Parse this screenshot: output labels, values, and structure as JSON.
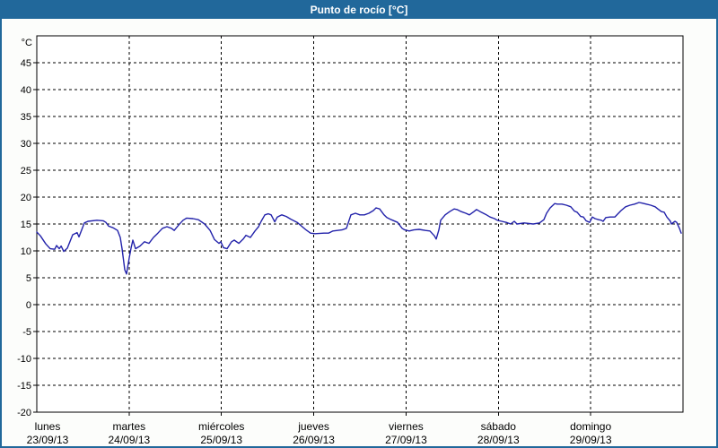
{
  "window": {
    "title": "Punto de rocío [°C]"
  },
  "colors": {
    "frame_blue": "#21689B",
    "title_text": "#FFFFFF",
    "window_bg": "#FCFDFB",
    "plot_bg": "#FFFFFF",
    "grid_black": "#000000",
    "series_blue": "#2222AA",
    "label_black": "#000000"
  },
  "axes": {
    "y": {
      "unit": "°C",
      "tick_values": [
        45,
        40,
        35,
        30,
        25,
        20,
        15,
        10,
        5,
        0,
        -5,
        -10,
        -15,
        -20
      ],
      "tick_labels": [
        "45",
        "40",
        "35",
        "30",
        "25",
        "20",
        "15",
        "10",
        "5",
        "0",
        "-5",
        "-10",
        "-15",
        "-20"
      ]
    },
    "x": {
      "days": [
        {
          "name": "lunes",
          "date": "23/09/13"
        },
        {
          "name": "martes",
          "date": "24/09/13"
        },
        {
          "name": "miércoles",
          "date": "25/09/13"
        },
        {
          "name": "jueves",
          "date": "26/09/13"
        },
        {
          "name": "viernes",
          "date": "27/09/13"
        },
        {
          "name": "sábado",
          "date": "28/09/13"
        },
        {
          "name": "domingo",
          "date": "29/09/13"
        }
      ]
    }
  },
  "chart_data": {
    "type": "line",
    "title": "Punto de rocío [°C]",
    "ylabel": "°C",
    "ylim": [
      -20,
      50
    ],
    "y_tick_step": 5,
    "grid": "dashed",
    "legend": "none",
    "x_axis_note": "x is time in days from lunes 23/09/13 00:00 to domingo 29/09/13 24:00 (0..7)",
    "x_days_total": 7,
    "series": [
      {
        "name": "Punto de rocío",
        "color": "#2222AA",
        "points": [
          [
            0.0,
            13.5
          ],
          [
            0.039,
            12.8
          ],
          [
            0.097,
            11.3
          ],
          [
            0.146,
            10.4
          ],
          [
            0.194,
            10.3
          ],
          [
            0.214,
            11.0
          ],
          [
            0.243,
            10.4
          ],
          [
            0.263,
            10.9
          ],
          [
            0.292,
            9.9
          ],
          [
            0.331,
            10.5
          ],
          [
            0.389,
            13.0
          ],
          [
            0.437,
            13.4
          ],
          [
            0.457,
            12.6
          ],
          [
            0.515,
            15.2
          ],
          [
            0.554,
            15.5
          ],
          [
            0.651,
            15.7
          ],
          [
            0.719,
            15.6
          ],
          [
            0.749,
            15.3
          ],
          [
            0.778,
            14.6
          ],
          [
            0.826,
            14.3
          ],
          [
            0.875,
            13.8
          ],
          [
            0.904,
            12.5
          ],
          [
            0.924,
            10.4
          ],
          [
            0.953,
            6.5
          ],
          [
            0.972,
            5.7
          ],
          [
            1.001,
            8.7
          ],
          [
            1.021,
            10.5
          ],
          [
            1.04,
            12.0
          ],
          [
            1.069,
            10.4
          ],
          [
            1.118,
            10.9
          ],
          [
            1.167,
            11.7
          ],
          [
            1.215,
            11.4
          ],
          [
            1.264,
            12.5
          ],
          [
            1.312,
            13.3
          ],
          [
            1.361,
            14.2
          ],
          [
            1.41,
            14.5
          ],
          [
            1.458,
            14.2
          ],
          [
            1.488,
            13.8
          ],
          [
            1.536,
            14.8
          ],
          [
            1.585,
            15.7
          ],
          [
            1.624,
            16.1
          ],
          [
            1.692,
            16.0
          ],
          [
            1.75,
            15.8
          ],
          [
            1.818,
            15.0
          ],
          [
            1.877,
            13.8
          ],
          [
            1.925,
            12.1
          ],
          [
            1.974,
            11.4
          ],
          [
            1.993,
            11.7
          ],
          [
            2.022,
            10.6
          ],
          [
            2.061,
            10.4
          ],
          [
            2.11,
            11.7
          ],
          [
            2.139,
            12.0
          ],
          [
            2.188,
            11.4
          ],
          [
            2.236,
            12.2
          ],
          [
            2.265,
            12.9
          ],
          [
            2.314,
            12.5
          ],
          [
            2.363,
            13.7
          ],
          [
            2.402,
            14.5
          ],
          [
            2.431,
            15.5
          ],
          [
            2.47,
            16.7
          ],
          [
            2.508,
            16.9
          ],
          [
            2.538,
            16.7
          ],
          [
            2.577,
            15.4
          ],
          [
            2.606,
            16.3
          ],
          [
            2.654,
            16.7
          ],
          [
            2.703,
            16.4
          ],
          [
            2.751,
            15.9
          ],
          [
            2.82,
            15.3
          ],
          [
            2.868,
            14.6
          ],
          [
            2.917,
            13.9
          ],
          [
            2.965,
            13.3
          ],
          [
            3.014,
            13.2
          ],
          [
            3.111,
            13.3
          ],
          [
            3.16,
            13.3
          ],
          [
            3.208,
            13.7
          ],
          [
            3.306,
            13.9
          ],
          [
            3.354,
            14.2
          ],
          [
            3.403,
            16.7
          ],
          [
            3.451,
            17.0
          ],
          [
            3.5,
            16.7
          ],
          [
            3.549,
            16.7
          ],
          [
            3.597,
            17.0
          ],
          [
            3.646,
            17.5
          ],
          [
            3.675,
            18.0
          ],
          [
            3.714,
            17.8
          ],
          [
            3.762,
            16.7
          ],
          [
            3.792,
            16.2
          ],
          [
            3.84,
            15.8
          ],
          [
            3.908,
            15.3
          ],
          [
            3.957,
            14.2
          ],
          [
            3.986,
            13.9
          ],
          [
            4.035,
            13.7
          ],
          [
            4.083,
            13.9
          ],
          [
            4.142,
            14.0
          ],
          [
            4.21,
            13.8
          ],
          [
            4.258,
            13.7
          ],
          [
            4.307,
            12.8
          ],
          [
            4.326,
            12.2
          ],
          [
            4.356,
            13.9
          ],
          [
            4.375,
            15.7
          ],
          [
            4.424,
            16.7
          ],
          [
            4.472,
            17.3
          ],
          [
            4.521,
            17.8
          ],
          [
            4.55,
            17.7
          ],
          [
            4.599,
            17.3
          ],
          [
            4.647,
            17.0
          ],
          [
            4.686,
            16.7
          ],
          [
            4.735,
            17.3
          ],
          [
            4.764,
            17.7
          ],
          [
            4.813,
            17.2
          ],
          [
            4.861,
            16.8
          ],
          [
            4.91,
            16.3
          ],
          [
            4.958,
            16.0
          ],
          [
            4.988,
            15.7
          ],
          [
            5.036,
            15.5
          ],
          [
            5.085,
            15.3
          ],
          [
            5.133,
            15.0
          ],
          [
            5.172,
            15.5
          ],
          [
            5.202,
            15.0
          ],
          [
            5.279,
            15.2
          ],
          [
            5.377,
            15.0
          ],
          [
            5.445,
            15.2
          ],
          [
            5.493,
            15.8
          ],
          [
            5.522,
            17.0
          ],
          [
            5.561,
            18.0
          ],
          [
            5.61,
            18.8
          ],
          [
            5.639,
            18.7
          ],
          [
            5.688,
            18.7
          ],
          [
            5.736,
            18.5
          ],
          [
            5.785,
            18.2
          ],
          [
            5.824,
            17.4
          ],
          [
            5.853,
            17.2
          ],
          [
            5.892,
            16.4
          ],
          [
            5.921,
            16.3
          ],
          [
            5.95,
            15.6
          ],
          [
            5.989,
            15.3
          ],
          [
            6.018,
            16.3
          ],
          [
            6.047,
            16.0
          ],
          [
            6.086,
            15.8
          ],
          [
            6.115,
            15.7
          ],
          [
            6.135,
            15.5
          ],
          [
            6.164,
            16.2
          ],
          [
            6.212,
            16.3
          ],
          [
            6.261,
            16.3
          ],
          [
            6.329,
            17.5
          ],
          [
            6.378,
            18.2
          ],
          [
            6.426,
            18.5
          ],
          [
            6.475,
            18.7
          ],
          [
            6.524,
            19.0
          ],
          [
            6.553,
            18.9
          ],
          [
            6.602,
            18.7
          ],
          [
            6.65,
            18.5
          ],
          [
            6.699,
            18.2
          ],
          [
            6.728,
            17.8
          ],
          [
            6.767,
            17.3
          ],
          [
            6.796,
            17.2
          ],
          [
            6.825,
            16.3
          ],
          [
            6.864,
            15.5
          ],
          [
            6.874,
            15.0
          ],
          [
            6.913,
            15.5
          ],
          [
            6.932,
            15.3
          ],
          [
            6.961,
            14.2
          ],
          [
            6.981,
            13.3
          ]
        ]
      }
    ]
  }
}
